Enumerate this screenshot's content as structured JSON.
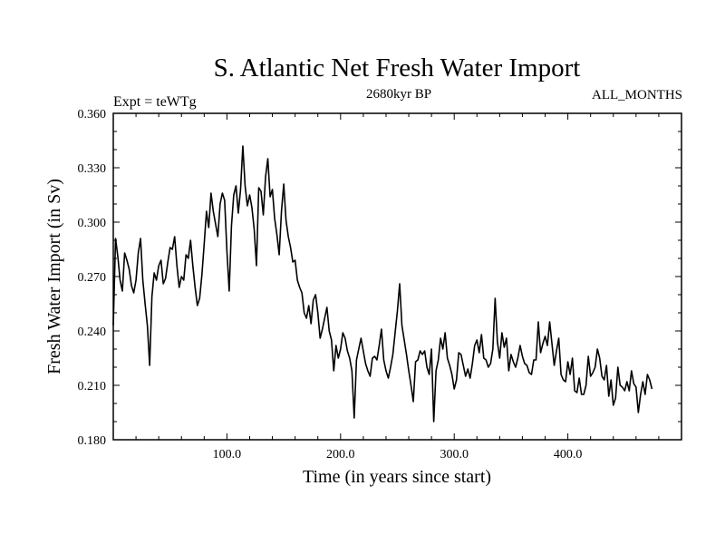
{
  "chart_data": {
    "type": "line",
    "title": "S. Atlantic Net Fresh Water Import",
    "subtitle": "2680kyr BP",
    "left_label": "Expt = teWTg",
    "right_label": "ALL_MONTHS",
    "xlabel": "Time (in years since start)",
    "ylabel": "Fresh Water Import (in Sv)",
    "xlim": [
      0,
      500
    ],
    "ylim": [
      0.18,
      0.36
    ],
    "xticks": [
      100,
      200,
      300,
      400
    ],
    "xtick_labels": [
      "100.0",
      "200.0",
      "300.0",
      "400.0"
    ],
    "yticks": [
      0.18,
      0.21,
      0.24,
      0.27,
      0.3,
      0.33,
      0.36
    ],
    "ytick_labels": [
      "0.180",
      "0.210",
      "0.240",
      "0.270",
      "0.300",
      "0.330",
      "0.360"
    ],
    "grid": false,
    "series": [
      {
        "name": "fresh water import",
        "x_start": 0,
        "x_step": 2,
        "values": [
          0.243,
          0.291,
          0.281,
          0.268,
          0.262,
          0.283,
          0.279,
          0.274,
          0.265,
          0.261,
          0.268,
          0.283,
          0.291,
          0.268,
          0.255,
          0.243,
          0.221,
          0.259,
          0.272,
          0.268,
          0.276,
          0.279,
          0.266,
          0.269,
          0.278,
          0.286,
          0.285,
          0.292,
          0.276,
          0.264,
          0.27,
          0.268,
          0.282,
          0.28,
          0.29,
          0.276,
          0.264,
          0.254,
          0.258,
          0.271,
          0.288,
          0.306,
          0.297,
          0.316,
          0.306,
          0.299,
          0.292,
          0.31,
          0.316,
          0.312,
          0.284,
          0.262,
          0.298,
          0.315,
          0.32,
          0.305,
          0.318,
          0.342,
          0.32,
          0.309,
          0.315,
          0.308,
          0.296,
          0.276,
          0.319,
          0.317,
          0.304,
          0.325,
          0.335,
          0.314,
          0.318,
          0.302,
          0.293,
          0.282,
          0.306,
          0.321,
          0.301,
          0.292,
          0.286,
          0.278,
          0.279,
          0.268,
          0.264,
          0.261,
          0.25,
          0.247,
          0.254,
          0.244,
          0.257,
          0.26,
          0.25,
          0.236,
          0.241,
          0.247,
          0.253,
          0.24,
          0.235,
          0.218,
          0.232,
          0.225,
          0.23,
          0.239,
          0.236,
          0.229,
          0.225,
          0.218,
          0.192,
          0.224,
          0.23,
          0.236,
          0.229,
          0.222,
          0.218,
          0.215,
          0.225,
          0.226,
          0.224,
          0.232,
          0.241,
          0.224,
          0.218,
          0.214,
          0.22,
          0.227,
          0.239,
          0.251,
          0.266,
          0.243,
          0.235,
          0.227,
          0.218,
          0.21,
          0.201,
          0.223,
          0.224,
          0.229,
          0.227,
          0.229,
          0.22,
          0.216,
          0.23,
          0.19,
          0.218,
          0.224,
          0.236,
          0.23,
          0.239,
          0.225,
          0.221,
          0.216,
          0.208,
          0.213,
          0.228,
          0.227,
          0.221,
          0.215,
          0.219,
          0.214,
          0.222,
          0.232,
          0.235,
          0.228,
          0.238,
          0.225,
          0.224,
          0.22,
          0.222,
          0.23,
          0.258,
          0.234,
          0.225,
          0.239,
          0.231,
          0.236,
          0.218,
          0.227,
          0.223,
          0.22,
          0.225,
          0.232,
          0.226,
          0.222,
          0.221,
          0.217,
          0.216,
          0.224,
          0.224,
          0.245,
          0.228,
          0.233,
          0.237,
          0.232,
          0.245,
          0.233,
          0.221,
          0.229,
          0.236,
          0.216,
          0.213,
          0.212,
          0.223,
          0.216,
          0.225,
          0.207,
          0.206,
          0.214,
          0.205,
          0.205,
          0.21,
          0.226,
          0.215,
          0.217,
          0.22,
          0.23,
          0.225,
          0.215,
          0.213,
          0.221,
          0.204,
          0.213,
          0.199,
          0.203,
          0.22,
          0.21,
          0.209,
          0.207,
          0.212,
          0.207,
          0.218,
          0.211,
          0.209,
          0.195,
          0.205,
          0.212,
          0.205,
          0.216,
          0.213,
          0.208
        ]
      }
    ]
  }
}
